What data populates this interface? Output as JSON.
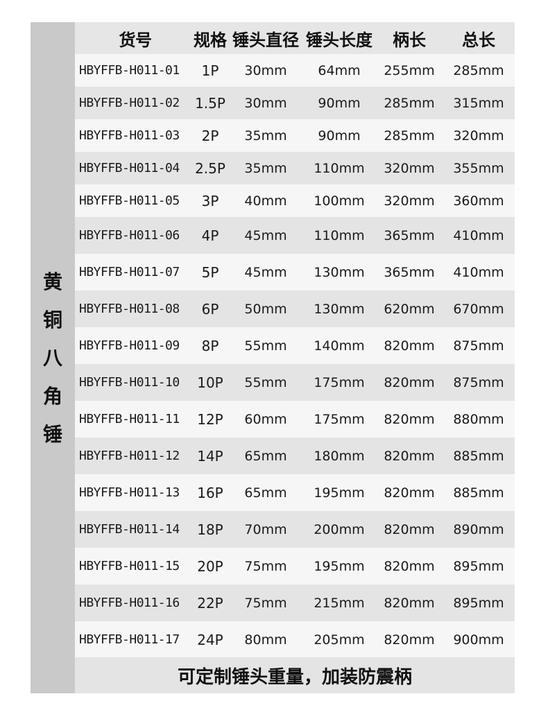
{
  "side_label": [
    "黄",
    "铜",
    "八",
    "角",
    "锤"
  ],
  "headers": [
    "货号",
    "规格",
    "锤头直径",
    "锤头长度",
    "柄长",
    "总长"
  ],
  "rows": [
    [
      "HBYFFB-H011-01",
      "1P",
      "30mm",
      "64mm",
      "255mm",
      "285mm"
    ],
    [
      "HBYFFB-H011-02",
      "1.5P",
      "30mm",
      "90mm",
      "285mm",
      "315mm"
    ],
    [
      "HBYFFB-H011-03",
      "2P",
      "35mm",
      "90mm",
      "285mm",
      "320mm"
    ],
    [
      "HBYFFB-H011-04",
      "2.5P",
      "35mm",
      "110mm",
      "320mm",
      "355mm"
    ],
    [
      "HBYFFB-H011-05",
      "3P",
      "40mm",
      "100mm",
      "320mm",
      "360mm"
    ],
    [
      "HBYFFB-H011-06",
      "4P",
      "45mm",
      "110mm",
      "365mm",
      "410mm"
    ],
    [
      "HBYFFB-H011-07",
      "5P",
      "45mm",
      "130mm",
      "365mm",
      "410mm"
    ],
    [
      "HBYFFB-H011-08",
      "6P",
      "50mm",
      "130mm",
      "620mm",
      "670mm"
    ],
    [
      "HBYFFB-H011-09",
      "8P",
      "55mm",
      "140mm",
      "820mm",
      "875mm"
    ],
    [
      "HBYFFB-H011-10",
      "10P",
      "55mm",
      "175mm",
      "820mm",
      "875mm"
    ],
    [
      "HBYFFB-H011-11",
      "12P",
      "60mm",
      "175mm",
      "820mm",
      "880mm"
    ],
    [
      "HBYFFB-H011-12",
      "14P",
      "65mm",
      "180mm",
      "820mm",
      "885mm"
    ],
    [
      "HBYFFB-H011-13",
      "16P",
      "65mm",
      "195mm",
      "820mm",
      "885mm"
    ],
    [
      "HBYFFB-H011-14",
      "18P",
      "70mm",
      "200mm",
      "820mm",
      "890mm"
    ],
    [
      "HBYFFB-H011-15",
      "20P",
      "75mm",
      "195mm",
      "820mm",
      "895mm"
    ],
    [
      "HBYFFB-H011-16",
      "22P",
      "75mm",
      "215mm",
      "820mm",
      "895mm"
    ],
    [
      "HBYFFB-H011-17",
      "24P",
      "80mm",
      "205mm",
      "820mm",
      "900mm"
    ]
  ],
  "footer": "可定制锤头重量，加装防震柄"
}
